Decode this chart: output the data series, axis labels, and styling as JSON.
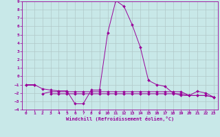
{
  "xlabel": "Windchill (Refroidissement éolien,°C)",
  "x": [
    0,
    1,
    2,
    3,
    4,
    5,
    6,
    7,
    8,
    9,
    10,
    11,
    12,
    13,
    14,
    15,
    16,
    17,
    18,
    19,
    20,
    21,
    22,
    23
  ],
  "line_main": [
    -1,
    -1,
    -1.5,
    -1.65,
    -1.75,
    -1.75,
    -3.3,
    -3.3,
    -1.65,
    -1.65,
    5.2,
    9.1,
    8.4,
    6.2,
    3.5,
    -0.5,
    -1.0,
    -1.2,
    -2.0,
    -2.3,
    -2.3,
    -1.8,
    -2.0,
    -2.5
  ],
  "line_flat1": [
    null,
    null,
    -2.1,
    -1.85,
    -1.85,
    -1.85,
    -1.85,
    -1.85,
    -1.85,
    -1.85,
    -1.85,
    -1.85,
    -1.85,
    -1.85,
    -1.85,
    -1.85,
    -1.85,
    -1.85,
    -1.85,
    -1.85,
    -2.3,
    -2.3,
    -2.3,
    -2.5
  ],
  "line_flat2": [
    null,
    null,
    null,
    -2.1,
    -2.1,
    -2.1,
    -2.1,
    -2.1,
    -2.1,
    -2.1,
    -2.1,
    -2.1,
    -2.1,
    -2.1,
    -2.1,
    -2.1,
    -2.1,
    -2.1,
    -2.1,
    -2.1,
    -2.3,
    -2.3,
    -2.3,
    -2.5
  ],
  "line_short": [
    -1,
    -1,
    null,
    null,
    null,
    null,
    null,
    null,
    null,
    null,
    null,
    null,
    null,
    null,
    null,
    null,
    null,
    null,
    null,
    null,
    null,
    null,
    null,
    null
  ],
  "color": "#990099",
  "bg_color": "#c8e8e8",
  "grid_color": "#b0c8c8",
  "ylim": [
    -4,
    9
  ],
  "xlim": [
    -0.5,
    23.5
  ],
  "yticks": [
    -4,
    -3,
    -2,
    -1,
    0,
    1,
    2,
    3,
    4,
    5,
    6,
    7,
    8,
    9
  ],
  "xticks": [
    0,
    1,
    2,
    3,
    4,
    5,
    6,
    7,
    8,
    9,
    10,
    11,
    12,
    13,
    14,
    15,
    16,
    17,
    18,
    19,
    20,
    21,
    22,
    23
  ]
}
